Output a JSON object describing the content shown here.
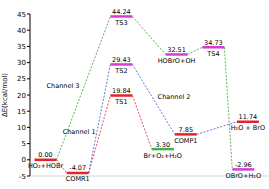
{
  "chart_data": {
    "type": "energy_profile",
    "y_label": "ΔE(kcal/mol)",
    "ylim": [
      -5,
      45
    ],
    "yticks": [
      -5,
      0,
      5,
      10,
      15,
      20,
      25,
      30,
      35,
      40,
      45
    ],
    "xlim": [
      0,
      10
    ],
    "tick_labels": "y",
    "levels": [
      {
        "name": "HO₂+HOBr",
        "value": 0.0,
        "value_label": "0.00",
        "x": 0.5,
        "color": "#e8202a"
      },
      {
        "name": "COMR1",
        "value": -4.07,
        "value_label": "-4.07",
        "x": 1.9,
        "color": "#e8202a"
      },
      {
        "name": "TS1",
        "value": 19.84,
        "value_label": "19.84",
        "x": 3.8,
        "color": "#e8202a"
      },
      {
        "name": "TS2",
        "value": 29.43,
        "value_label": "29.43",
        "x": 3.8,
        "color": "#d63bd6"
      },
      {
        "name": "TS3",
        "value": 44.24,
        "value_label": "44.24",
        "x": 3.8,
        "color": "#d63bd6"
      },
      {
        "name": "Br+O₂+H₂O",
        "value": 3.3,
        "value_label": "3.30",
        "x": 5.6,
        "color": "#39b54a"
      },
      {
        "name": "HOBrO+OH",
        "value": 32.51,
        "value_label": "32.51",
        "x": 6.2,
        "color": "#d63bd6"
      },
      {
        "name": "COMP1",
        "value": 7.85,
        "value_label": "7.85",
        "x": 6.6,
        "color": "#e8202a"
      },
      {
        "name": "TS4",
        "value": 34.73,
        "value_label": "34.73",
        "x": 7.8,
        "color": "#d63bd6"
      },
      {
        "name": "H₂O + BrO",
        "value": 11.74,
        "value_label": "11.74",
        "x": 9.3,
        "color": "#e8202a"
      },
      {
        "name": "OBrO+H₂O",
        "value": -2.96,
        "value_label": "-2.96",
        "x": 9.1,
        "color": "#d63bd6"
      }
    ],
    "channels": [
      {
        "name": "Channel 1",
        "color": "#e8202a",
        "nodes": [
          0,
          1,
          2,
          5
        ]
      },
      {
        "name": "Channel 2",
        "color": "#2f5fd0",
        "nodes": [
          1,
          3,
          7,
          9
        ]
      },
      {
        "name": "Channel 3",
        "color": "#33a02c",
        "nodes": [
          0,
          4,
          6,
          8,
          10
        ]
      }
    ]
  }
}
